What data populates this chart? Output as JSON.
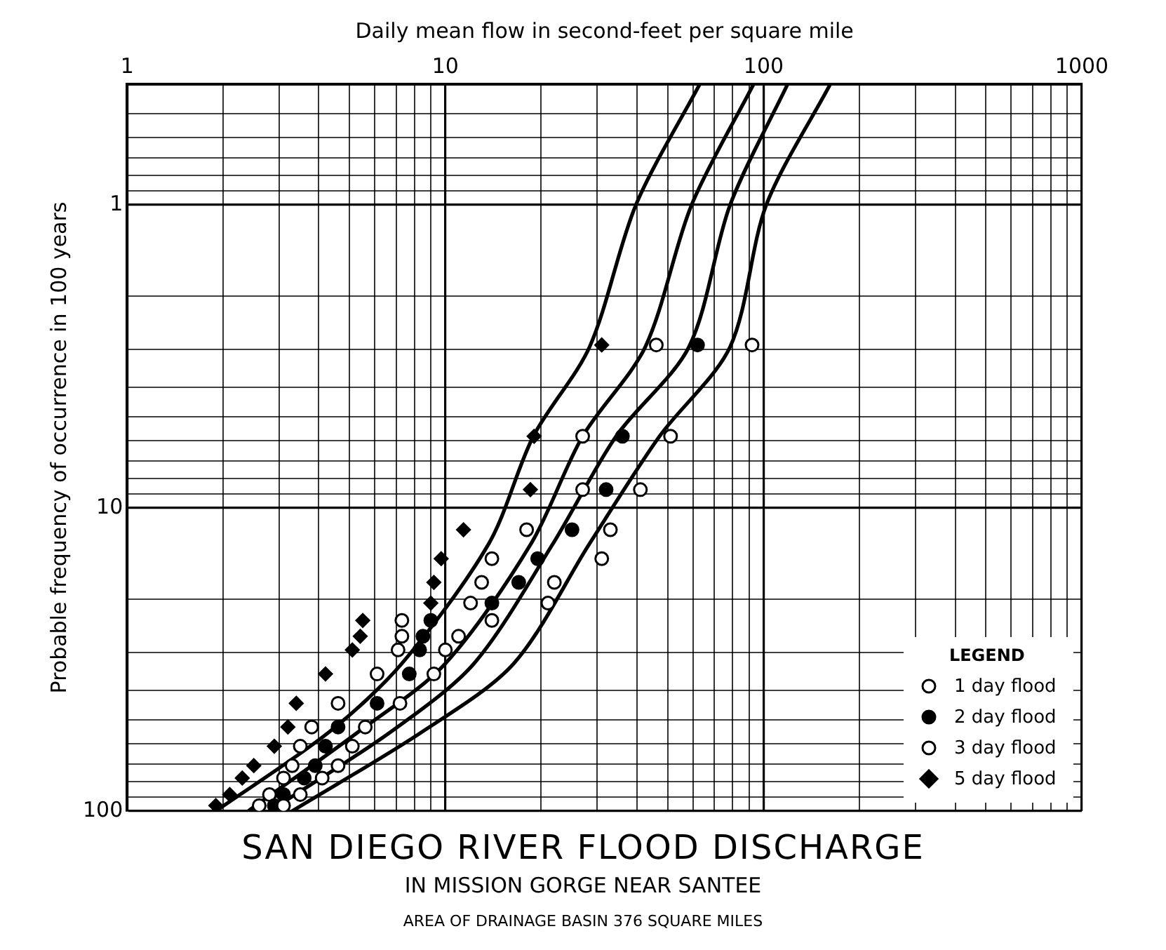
{
  "chart_data": {
    "type": "scatter",
    "title": "SAN DIEGO RIVER FLOOD DISCHARGE",
    "subtitle": "IN MISSION GORGE NEAR SANTEE",
    "annotations": [
      "AREA OF DRAINAGE BASIN 376 SQUARE MILES"
    ],
    "xlabel": "Daily mean flow in second-feet per square mile",
    "ylabel": "Probable frequency of occurrence in 100 years",
    "legend_title": "LEGEND",
    "legend": "bottom right",
    "log": "xy",
    "grid": true,
    "xlim": [
      1,
      1000
    ],
    "xticks": [
      1,
      {
        "value": 2,
        "label": null
      },
      {
        "value": 3,
        "label": null
      },
      {
        "value": 4,
        "label": null
      },
      {
        "value": 5,
        "label": null
      },
      {
        "value": 6,
        "label": null
      },
      {
        "value": 7,
        "label": null
      },
      {
        "value": 8,
        "label": null
      },
      {
        "value": 9,
        "label": null
      },
      10,
      {
        "value": 20,
        "label": null
      },
      {
        "value": 30,
        "label": null
      },
      {
        "value": 40,
        "label": null
      },
      {
        "value": 50,
        "label": null
      },
      {
        "value": 60,
        "label": null
      },
      {
        "value": 70,
        "label": null
      },
      {
        "value": 80,
        "label": null
      },
      {
        "value": 90,
        "label": null
      },
      100,
      {
        "value": 200,
        "label": null
      },
      {
        "value": 300,
        "label": null
      },
      {
        "value": 400,
        "label": null
      },
      {
        "value": 500,
        "label": null
      },
      {
        "value": 600,
        "label": null
      },
      {
        "value": 700,
        "label": null
      },
      {
        "value": 800,
        "label": null
      },
      {
        "value": 900,
        "label": null
      },
      1000
    ],
    "ylim": [
      100,
      0.4
    ],
    "yticks": [
      {
        "value": 0.4,
        "label": null
      },
      {
        "value": 0.5,
        "label": null
      },
      {
        "value": 0.6,
        "label": null
      },
      {
        "value": 0.7,
        "label": null
      },
      {
        "value": 0.8,
        "label": null
      },
      {
        "value": 0.9,
        "label": null
      },
      1,
      {
        "value": 2,
        "label": null
      },
      {
        "value": 3,
        "label": null
      },
      {
        "value": 4,
        "label": null
      },
      {
        "value": 5,
        "label": null
      },
      {
        "value": 6,
        "label": null
      },
      {
        "value": 7,
        "label": null
      },
      {
        "value": 8,
        "label": null
      },
      {
        "value": 9,
        "label": null
      },
      10,
      {
        "value": 20,
        "label": null
      },
      {
        "value": 30,
        "label": null
      },
      {
        "value": 40,
        "label": null
      },
      {
        "value": 50,
        "label": null
      },
      {
        "value": 60,
        "label": null
      },
      {
        "value": 70,
        "label": null
      },
      {
        "value": 80,
        "label": null
      },
      {
        "value": 90,
        "label": null
      },
      100
    ],
    "series": [
      {
        "name": "1 day flood",
        "type": "scatter",
        "marker": "circle",
        "color": "#ffffff",
        "x": [
          92,
          51,
          41,
          33,
          31,
          22,
          21,
          14,
          11,
          10,
          9.2,
          7.2,
          5.6,
          5.1,
          4.6,
          4.1,
          3.5,
          3.1
        ],
        "values": [
          2.9,
          5.8,
          8.7,
          11.8,
          14.7,
          17.6,
          20.6,
          23.5,
          26.5,
          29.4,
          35.3,
          44.1,
          52.8,
          61.1,
          70.8,
          77.8,
          88.2,
          95.9
        ]
      },
      {
        "name": "2 day flood",
        "type": "scatter",
        "marker": "circle",
        "color": "#000000",
        "x": [
          62,
          36,
          32,
          25,
          19.5,
          17,
          14,
          9.0,
          8.5,
          8.3,
          7.7,
          6.1,
          4.6,
          4.2,
          3.9,
          3.6,
          3.1,
          2.9
        ],
        "values": [
          2.9,
          5.8,
          8.7,
          11.8,
          14.7,
          17.6,
          20.6,
          23.5,
          26.5,
          29.4,
          35.3,
          44.1,
          52.8,
          61.1,
          70.8,
          77.8,
          88.2,
          95.9
        ]
      },
      {
        "name": "3 day flood",
        "type": "scatter",
        "marker": "circle",
        "color": "#ffffff",
        "x": [
          46,
          27,
          27,
          18,
          14,
          13,
          12,
          7.3,
          7.3,
          7.1,
          6.1,
          4.6,
          3.8,
          3.5,
          3.3,
          3.1,
          2.8,
          2.6
        ],
        "values": [
          2.9,
          5.8,
          8.7,
          11.8,
          14.7,
          17.6,
          20.6,
          23.5,
          26.5,
          29.4,
          35.3,
          44.1,
          52.8,
          61.1,
          70.8,
          77.8,
          88.2,
          95.9
        ]
      },
      {
        "name": "5 day flood",
        "type": "scatter",
        "marker": "diamond",
        "color": "#000000",
        "x": [
          31,
          19,
          18.5,
          11.4,
          9.7,
          9.2,
          9.0,
          5.5,
          5.4,
          5.1,
          4.2,
          3.4,
          3.2,
          2.9,
          2.5,
          2.3,
          2.1,
          1.9
        ],
        "values": [
          2.9,
          5.8,
          8.7,
          11.8,
          14.7,
          17.6,
          20.6,
          23.5,
          26.5,
          29.4,
          35.3,
          44.1,
          52.8,
          61.1,
          70.8,
          77.8,
          88.2,
          95.9
        ]
      },
      {
        "type": "line",
        "marker": "none",
        "color": "#000000",
        "x": [
          63,
          39.7,
          28.4,
          18.9,
          13.7,
          7.3,
          4.3,
          1.9
        ],
        "values": [
          0.4,
          1,
          2.94,
          5.8,
          13.1,
          32.6,
          55,
          100
        ]
      },
      {
        "type": "line",
        "marker": "none",
        "color": "#000000",
        "x": [
          93,
          59.4,
          42.5,
          27,
          18.6,
          10,
          5.3,
          2.4
        ],
        "values": [
          0.4,
          1,
          2.94,
          5.8,
          13.1,
          32.6,
          55,
          100
        ]
      },
      {
        "type": "line",
        "marker": "none",
        "color": "#000000",
        "x": [
          119,
          78.5,
          58.3,
          34.4,
          21.8,
          12.3,
          6.7,
          2.8
        ],
        "values": [
          0.4,
          1,
          2.94,
          5.8,
          13.1,
          32.6,
          55,
          100
        ]
      },
      {
        "type": "line",
        "marker": "none",
        "color": "#000000",
        "x": [
          162,
          102,
          78.5,
          47.1,
          28.4,
          16.4,
          8.4,
          3.3
        ],
        "values": [
          0.4,
          1,
          2.94,
          5.8,
          13.1,
          32.6,
          55,
          100
        ]
      }
    ]
  }
}
